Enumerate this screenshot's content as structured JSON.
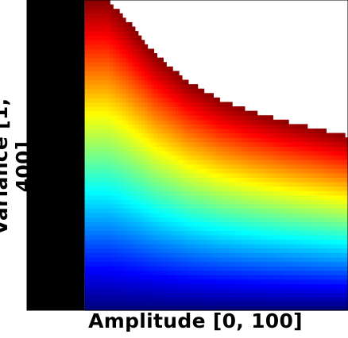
{
  "chart_data": {
    "type": "heatmap",
    "title": "",
    "xlabel": "Amplitude [0, 100]",
    "ylabel": "Variance [1, 400]",
    "xlim": [
      0,
      100
    ],
    "ylim": [
      1,
      400
    ],
    "x_ticks": [],
    "y_ticks": [],
    "colormap": "jet",
    "colors": {
      "background": "#ffffff",
      "masked_region": "#000000",
      "undefined_region": "#ffffff",
      "low": "#0000ff",
      "high": "#8b0000"
    },
    "masked_amplitude_max": 18,
    "domain_boundary": [
      {
        "amplitude": 18,
        "variance": 400
      },
      {
        "amplitude": 25,
        "variance": 400
      },
      {
        "amplitude": 30,
        "variance": 380
      },
      {
        "amplitude": 40,
        "variance": 330
      },
      {
        "amplitude": 50,
        "variance": 295
      },
      {
        "amplitude": 60,
        "variance": 272
      },
      {
        "amplitude": 70,
        "variance": 257
      },
      {
        "amplitude": 80,
        "variance": 245
      },
      {
        "amplitude": 90,
        "variance": 235
      },
      {
        "amplitude": 100,
        "variance": 225
      }
    ],
    "legend": "none",
    "grid": false
  }
}
